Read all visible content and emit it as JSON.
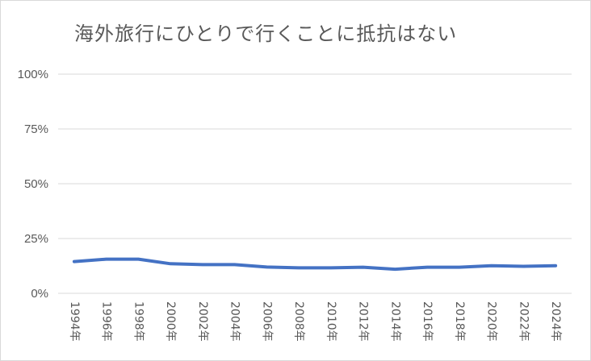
{
  "chart_data": {
    "type": "line",
    "title": "海外旅行にひとりで行くことに抵抗はない",
    "categories": [
      "1994年",
      "1996年",
      "1998年",
      "2000年",
      "2002年",
      "2004年",
      "2006年",
      "2008年",
      "2010年",
      "2012年",
      "2014年",
      "2016年",
      "2018年",
      "2020年",
      "2022年",
      "2024年"
    ],
    "series": [
      {
        "values": [
          14.5,
          15.6,
          15.6,
          13.5,
          13.1,
          13.1,
          12.0,
          11.6,
          11.6,
          11.9,
          11.0,
          11.9,
          11.9,
          12.6,
          12.3,
          12.6
        ]
      }
    ],
    "yticks": [
      "0%",
      "25%",
      "50%",
      "75%",
      "100%"
    ],
    "ylim": [
      0,
      100
    ],
    "grid": true,
    "line_color": "#4472C4",
    "grid_color": "#d9d9d9"
  }
}
